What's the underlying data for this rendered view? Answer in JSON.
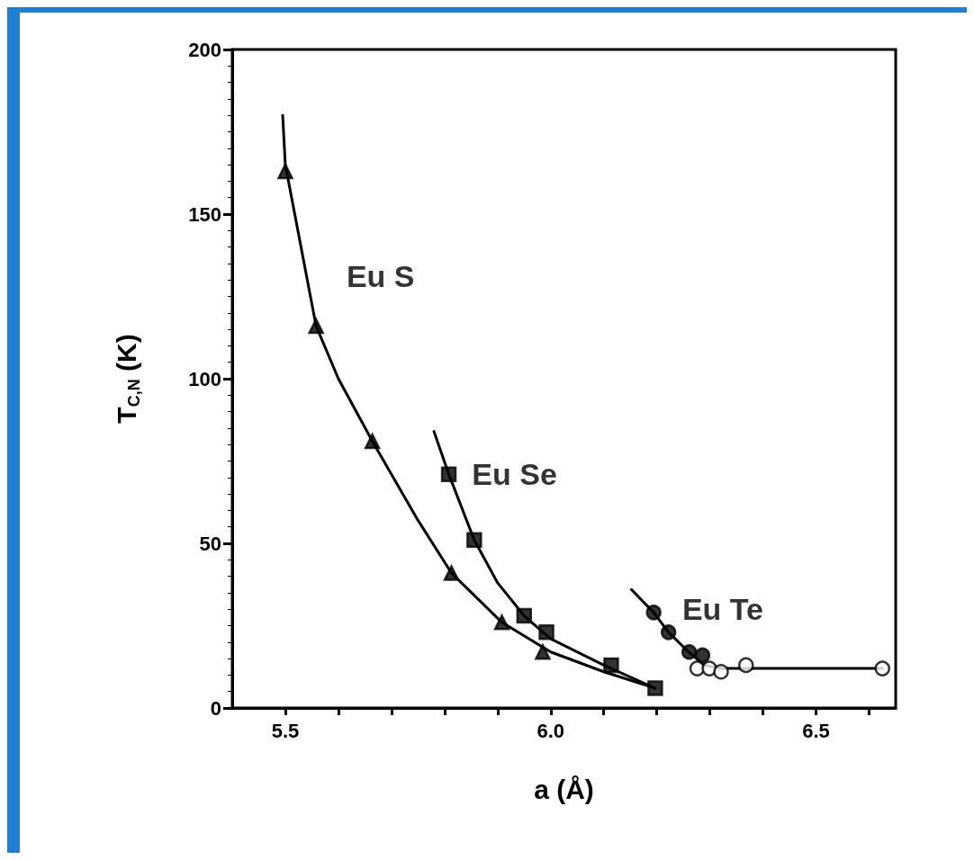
{
  "chart_data": {
    "type": "scatter",
    "xlabel": "a (Å)",
    "ylabel": "T$_{C,N}$ (K)",
    "xlim": [
      5.4,
      6.65
    ],
    "xticks": [
      5.5,
      {
        "value": 5.6,
        "label": null
      },
      {
        "value": 5.7,
        "label": null
      },
      {
        "value": 5.8,
        "label": null
      },
      {
        "value": 5.9,
        "label": null
      },
      {
        "value": 6.0,
        "label": "6.0"
      },
      {
        "value": 6.1,
        "label": null
      },
      {
        "value": 6.2,
        "label": null
      },
      {
        "value": 6.3,
        "label": null
      },
      {
        "value": 6.4,
        "label": null
      },
      6.5,
      {
        "value": 6.6,
        "label": null
      }
    ],
    "ylim": [
      0,
      200
    ],
    "yticks": [
      0,
      50,
      100,
      150,
      200
    ],
    "grid": false,
    "legend": false,
    "series": [
      {
        "type": "line",
        "marker": "none",
        "line_style": "solid",
        "color": "#000000",
        "x": [
          5.495,
          5.5,
          5.558,
          5.6,
          5.664,
          5.75,
          5.813,
          5.908,
          6.0,
          6.1,
          6.197
        ],
        "values": [
          180,
          165,
          116,
          100,
          81,
          57,
          41,
          26,
          17,
          11,
          6
        ]
      },
      {
        "type": "line",
        "marker": "none",
        "line_style": "solid",
        "color": "#000000",
        "x": [
          5.78,
          5.808,
          5.856,
          5.9,
          5.95,
          6.0,
          6.1,
          6.197
        ],
        "values": [
          84,
          71,
          51,
          38,
          28,
          21,
          13,
          6
        ]
      },
      {
        "type": "line",
        "marker": "none",
        "line_style": "solid",
        "color": "#000000",
        "x": [
          6.152,
          6.194,
          6.222,
          6.26,
          6.29,
          6.32,
          6.4,
          6.625
        ],
        "values": [
          36,
          29,
          23,
          17,
          13,
          12,
          12,
          12
        ]
      },
      {
        "name": "Eu S",
        "marker": "triangle",
        "color": "#000000",
        "x": [
          5.5,
          5.558,
          5.664,
          5.813,
          5.908,
          5.985
        ],
        "values": [
          163,
          116,
          81,
          41,
          26,
          17
        ]
      },
      {
        "name": "Eu Se",
        "marker": "square",
        "color": "#000000",
        "x": [
          5.808,
          5.856,
          5.95,
          5.992,
          6.114,
          6.197
        ],
        "values": [
          71,
          51,
          28,
          23,
          13,
          6
        ]
      },
      {
        "name": "Eu Te",
        "marker": "circle",
        "color": "#000000",
        "x": [
          6.194,
          6.222,
          6.261,
          6.286
        ],
        "values": [
          29,
          23,
          17,
          16
        ]
      },
      {
        "marker": "circle",
        "color": "#ffffff",
        "x": [
          6.276,
          6.299,
          6.321,
          6.368,
          6.625
        ],
        "values": [
          12,
          12,
          11,
          13,
          12
        ]
      }
    ]
  }
}
